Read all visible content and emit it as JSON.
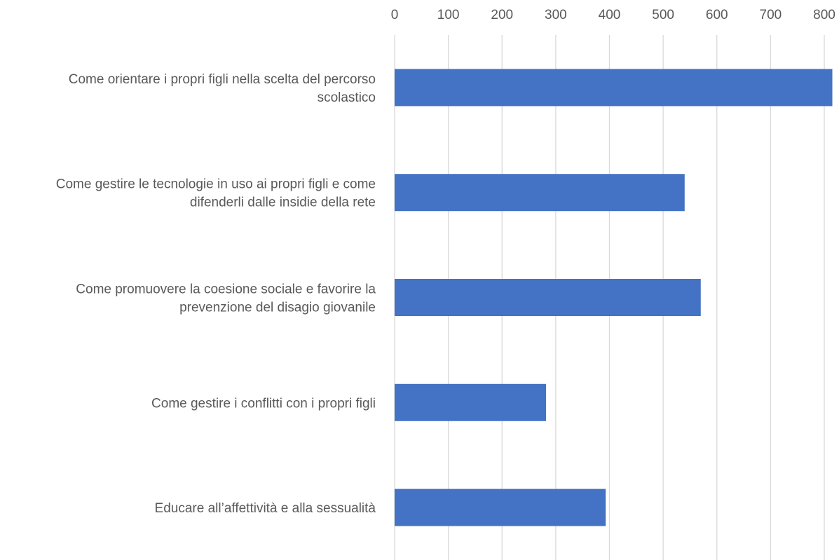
{
  "chart_data": {
    "type": "bar",
    "orientation": "horizontal",
    "title": "",
    "xlabel": "",
    "ylabel": "",
    "xlim": [
      0,
      800
    ],
    "x_ticks": [
      0,
      100,
      200,
      300,
      400,
      500,
      600,
      700,
      800
    ],
    "x_axis_position": "top",
    "grid": true,
    "legend": "none",
    "bar_color": "#4472c4",
    "categories": [
      [
        "Come orientare i propri figli nella scelta del percorso",
        "scolastico"
      ],
      [
        "Come gestire le tecnologie in uso ai propri figli e come",
        "difenderli dalle insidie della rete"
      ],
      [
        "Come promuovere la coesione sociale e favorire la",
        "prevenzione del disagio giovanile"
      ],
      [
        "Come gestire i conflitti con i propri figli"
      ],
      [
        "Educare all’affettività e alla sessualità"
      ]
    ],
    "values": [
      815,
      540,
      570,
      282,
      393
    ]
  }
}
